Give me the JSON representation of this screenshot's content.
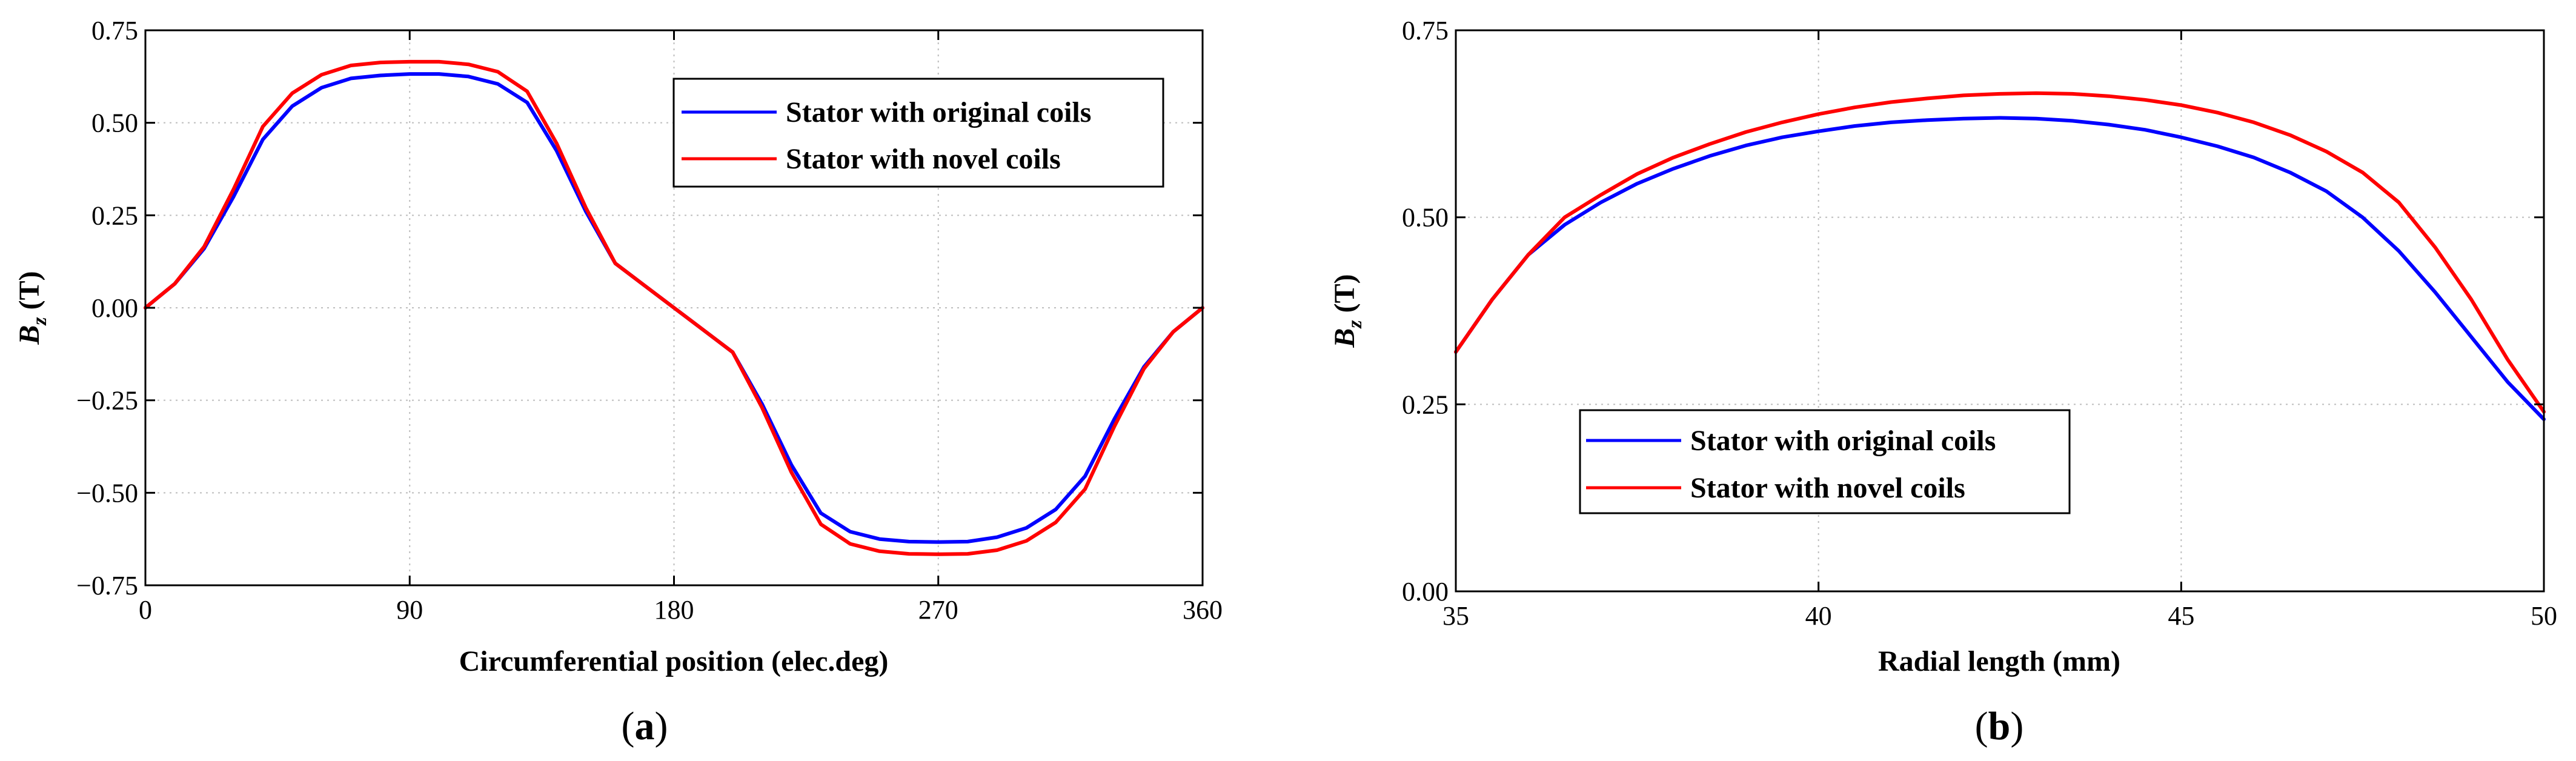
{
  "chart_data": [
    {
      "id": "a",
      "type": "line",
      "caption_letter": "a",
      "xlabel": "Circumferential position (elec.deg)",
      "ylabel_main": "B",
      "ylabel_sub": "z",
      "ylabel_unit": " (T)",
      "xlim": [
        0,
        360
      ],
      "ylim": [
        -0.75,
        0.75
      ],
      "xticks": [
        0,
        90,
        180,
        270,
        360
      ],
      "yticks": [
        -0.75,
        -0.5,
        -0.25,
        0,
        0.25,
        0.5,
        0.75
      ],
      "xtick_labels": [
        "0",
        "90",
        "180",
        "270",
        "360"
      ],
      "ytick_labels": [
        "−0.75",
        "−0.50",
        "−0.25",
        "0.00",
        "0.25",
        "0.50",
        "0.75"
      ],
      "grid": true,
      "legend_position": "top-right",
      "series": [
        {
          "name": "Stator with original coils",
          "color": "#0000ff",
          "x": [
            0,
            10,
            20,
            30,
            40,
            50,
            60,
            70,
            80,
            90,
            100,
            110,
            120,
            130,
            140,
            150,
            160,
            170,
            180,
            190,
            200,
            210,
            220,
            230,
            240,
            250,
            260,
            270,
            280,
            290,
            300,
            310,
            320,
            330,
            340,
            350,
            360
          ],
          "y": [
            0,
            0.065,
            0.16,
            0.3,
            0.455,
            0.545,
            0.595,
            0.62,
            0.628,
            0.632,
            0.632,
            0.625,
            0.605,
            0.555,
            0.425,
            0.26,
            0.12,
            0.06,
            0,
            -0.06,
            -0.12,
            -0.26,
            -0.425,
            -0.555,
            -0.605,
            -0.625,
            -0.632,
            -0.633,
            -0.632,
            -0.62,
            -0.595,
            -0.545,
            -0.455,
            -0.3,
            -0.16,
            -0.065,
            0
          ]
        },
        {
          "name": "Stator with novel coils",
          "color": "#ff0000",
          "x": [
            0,
            10,
            20,
            30,
            40,
            50,
            60,
            70,
            80,
            90,
            100,
            110,
            120,
            130,
            140,
            150,
            160,
            170,
            180,
            190,
            200,
            210,
            220,
            230,
            240,
            250,
            260,
            270,
            280,
            290,
            300,
            310,
            320,
            330,
            340,
            350,
            360
          ],
          "y": [
            0,
            0.065,
            0.165,
            0.32,
            0.49,
            0.58,
            0.63,
            0.655,
            0.663,
            0.665,
            0.665,
            0.658,
            0.638,
            0.585,
            0.445,
            0.27,
            0.12,
            0.06,
            0,
            -0.06,
            -0.12,
            -0.27,
            -0.445,
            -0.585,
            -0.638,
            -0.658,
            -0.665,
            -0.666,
            -0.665,
            -0.655,
            -0.63,
            -0.58,
            -0.49,
            -0.32,
            -0.165,
            -0.065,
            0
          ]
        }
      ]
    },
    {
      "id": "b",
      "type": "line",
      "caption_letter": "b",
      "xlabel": "Radial length (mm)",
      "ylabel_main": "B",
      "ylabel_sub": "z",
      "ylabel_unit": " (T)",
      "xlim": [
        35,
        50
      ],
      "ylim": [
        0,
        0.75
      ],
      "xticks": [
        35,
        40,
        45,
        50
      ],
      "yticks": [
        0,
        0.25,
        0.5,
        0.75
      ],
      "xtick_labels": [
        "35",
        "40",
        "45",
        "50"
      ],
      "ytick_labels": [
        "0.00",
        "0.25",
        "0.50",
        "0.75"
      ],
      "grid": true,
      "legend_position": "bottom-left",
      "series": [
        {
          "name": "Stator with original coils",
          "color": "#0000ff",
          "x": [
            35,
            35.5,
            36,
            36.5,
            37,
            37.5,
            38,
            38.5,
            39,
            39.5,
            40,
            40.5,
            41,
            41.5,
            42,
            42.5,
            43,
            43.5,
            44,
            44.5,
            45,
            45.5,
            46,
            46.5,
            47,
            47.5,
            48,
            48.5,
            49,
            49.5,
            50
          ],
          "y": [
            0.32,
            0.39,
            0.45,
            0.49,
            0.52,
            0.545,
            0.565,
            0.582,
            0.596,
            0.607,
            0.615,
            0.622,
            0.627,
            0.63,
            0.632,
            0.633,
            0.632,
            0.629,
            0.624,
            0.617,
            0.607,
            0.595,
            0.58,
            0.56,
            0.535,
            0.5,
            0.455,
            0.4,
            0.34,
            0.28,
            0.23
          ]
        },
        {
          "name": "Stator with novel coils",
          "color": "#ff0000",
          "x": [
            35,
            35.5,
            36,
            36.5,
            37,
            37.5,
            38,
            38.5,
            39,
            39.5,
            40,
            40.5,
            41,
            41.5,
            42,
            42.5,
            43,
            43.5,
            44,
            44.5,
            45,
            45.5,
            46,
            46.5,
            47,
            47.5,
            48,
            48.5,
            49,
            49.5,
            50
          ],
          "y": [
            0.32,
            0.39,
            0.45,
            0.5,
            0.53,
            0.558,
            0.58,
            0.598,
            0.614,
            0.627,
            0.638,
            0.647,
            0.654,
            0.659,
            0.663,
            0.665,
            0.666,
            0.665,
            0.662,
            0.657,
            0.65,
            0.64,
            0.627,
            0.61,
            0.588,
            0.56,
            0.52,
            0.46,
            0.39,
            0.31,
            0.24
          ]
        }
      ]
    }
  ]
}
